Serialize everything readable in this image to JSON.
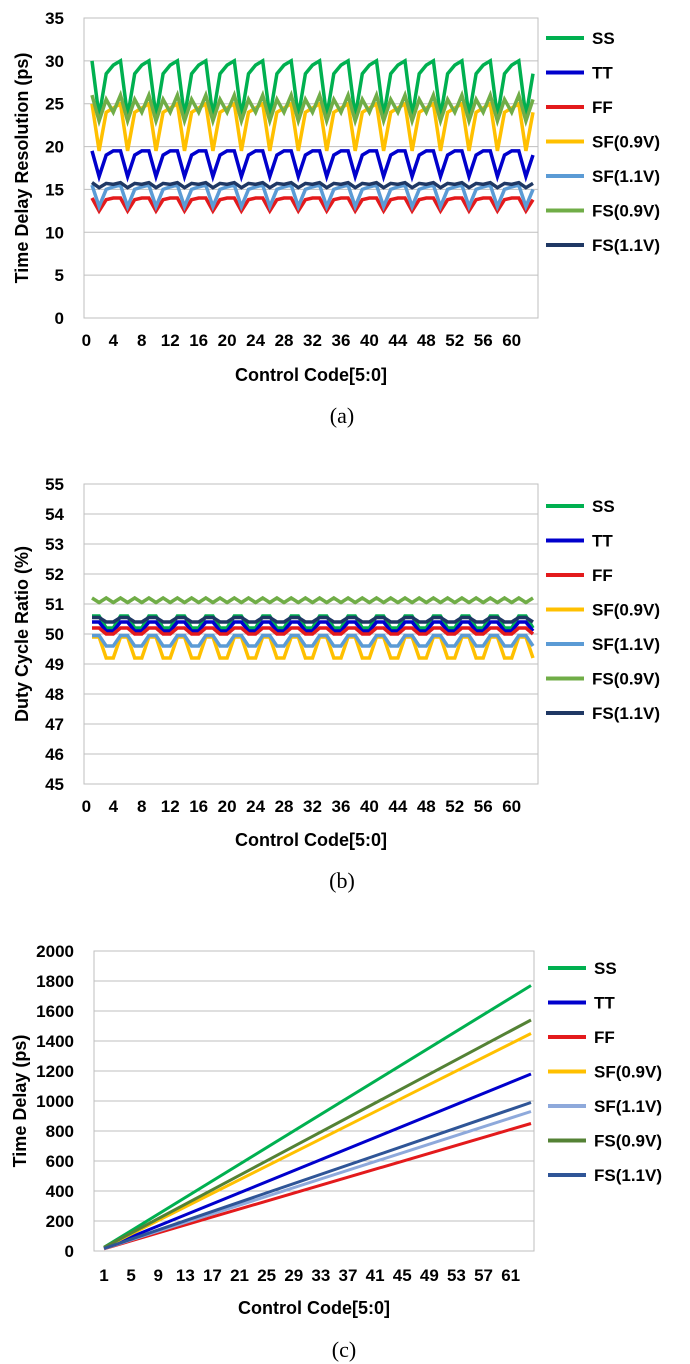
{
  "legend": [
    {
      "name": "SS",
      "color": "#00B050"
    },
    {
      "name": "TT",
      "color": "#0000CC"
    },
    {
      "name": "FF",
      "color": "#E31A1C"
    },
    {
      "name": "SF(0.9V)",
      "color": "#FFC000"
    },
    {
      "name": "SF(1.1V)",
      "color": "#5B9BD5"
    },
    {
      "name": "FS(0.9V)",
      "color": "#70AD47"
    },
    {
      "name": "FS(1.1V)",
      "color": "#1F3864"
    }
  ],
  "chart_data": [
    {
      "type": "line",
      "caption": "(a)",
      "ylabel": "Time Delay Resolution (ps)",
      "xlabel": "Control Code[5:0]",
      "ylim": [
        0,
        35
      ],
      "yticks": [
        "0",
        "5",
        "10",
        "15",
        "20",
        "25",
        "30",
        "35"
      ],
      "xticks": [
        "0",
        "4",
        "8",
        "12",
        "16",
        "20",
        "24",
        "28",
        "32",
        "36",
        "40",
        "44",
        "48",
        "52",
        "56",
        "60"
      ],
      "x_start": 1,
      "x_end": 63,
      "grid": "horizontal",
      "legend_position": "right",
      "series_colors": [
        "#00B050",
        "#0000CC",
        "#E31A1C",
        "#FFC000",
        "#5B9BD5",
        "#70AD47",
        "#1F3864"
      ],
      "series": [
        {
          "name": "SS",
          "pattern_period": 4,
          "pattern": [
            30,
            23.5,
            28.5,
            29.5
          ]
        },
        {
          "name": "TT",
          "pattern_period": 4,
          "pattern": [
            19.5,
            16.5,
            19,
            19.5
          ]
        },
        {
          "name": "FF",
          "pattern_period": 4,
          "pattern": [
            14,
            12.5,
            13.8,
            14
          ]
        },
        {
          "name": "SF(0.9V)",
          "pattern_period": 4,
          "pattern": [
            25,
            19.5,
            24,
            24.5
          ]
        },
        {
          "name": "SF(1.1V)",
          "pattern_period": 4,
          "pattern": [
            15.5,
            13,
            15,
            15.3
          ]
        },
        {
          "name": "FS(0.9V)",
          "pattern_period": 4,
          "pattern": [
            26,
            23,
            25.5,
            24
          ]
        },
        {
          "name": "FS(1.1V)",
          "pattern_period": 4,
          "pattern": [
            15.8,
            15.2,
            15.7,
            15.6
          ]
        }
      ]
    },
    {
      "type": "line",
      "caption": "(b)",
      "ylabel": "Duty Cycle Ratio (%)",
      "xlabel": "Control Code[5:0]",
      "ylim": [
        45,
        55
      ],
      "yticks": [
        "45",
        "46",
        "47",
        "48",
        "49",
        "50",
        "51",
        "52",
        "53",
        "54",
        "55"
      ],
      "xticks": [
        "0",
        "4",
        "8",
        "12",
        "16",
        "20",
        "24",
        "28",
        "32",
        "36",
        "40",
        "44",
        "48",
        "52",
        "56",
        "60"
      ],
      "x_start": 1,
      "x_end": 63,
      "grid": "horizontal",
      "legend_position": "right",
      "series_colors": [
        "#00B050",
        "#0000CC",
        "#E31A1C",
        "#FFC000",
        "#5B9BD5",
        "#70AD47",
        "#1F3864"
      ],
      "series": [
        {
          "name": "SS",
          "pattern_period": 4,
          "pattern": [
            50.6,
            50.6,
            50.2,
            50.2
          ]
        },
        {
          "name": "TT",
          "pattern_period": 4,
          "pattern": [
            50.4,
            50.4,
            50.1,
            50.1
          ]
        },
        {
          "name": "FF",
          "pattern_period": 4,
          "pattern": [
            50.2,
            50.2,
            50.0,
            50.0
          ]
        },
        {
          "name": "SF(0.9V)",
          "pattern_period": 4,
          "pattern": [
            49.9,
            49.9,
            49.2,
            49.2
          ]
        },
        {
          "name": "SF(1.1V)",
          "pattern_period": 4,
          "pattern": [
            49.95,
            49.95,
            49.6,
            49.6
          ]
        },
        {
          "name": "FS(0.9V)",
          "pattern_period": 4,
          "pattern": [
            51.2,
            51.05,
            51.2,
            51.05
          ]
        },
        {
          "name": "FS(1.1V)",
          "pattern_period": 4,
          "pattern": [
            50.55,
            50.55,
            50.4,
            50.4
          ]
        }
      ]
    },
    {
      "type": "line",
      "caption": "(c)",
      "ylabel": "Time Delay (ps)",
      "xlabel": "Control Code[5:0]",
      "ylim": [
        0,
        2000
      ],
      "yticks": [
        "0",
        "200",
        "400",
        "600",
        "800",
        "1000",
        "1200",
        "1400",
        "1600",
        "1800",
        "2000"
      ],
      "xticks": [
        "1",
        "5",
        "9",
        "13",
        "17",
        "21",
        "25",
        "29",
        "33",
        "37",
        "41",
        "45",
        "49",
        "53",
        "57",
        "61"
      ],
      "x_start": 1,
      "x_end": 64,
      "grid": "horizontal",
      "legend_position": "right",
      "series_colors": [
        "#00B050",
        "#0000CC",
        "#E31A1C",
        "#FFC000",
        "#8EA9DB",
        "#548235",
        "#2F5597"
      ],
      "series": [
        {
          "name": "SS",
          "start": 25,
          "end": 1770
        },
        {
          "name": "TT",
          "start": 20,
          "end": 1180
        },
        {
          "name": "FF",
          "start": 15,
          "end": 850
        },
        {
          "name": "SF(0.9V)",
          "start": 22,
          "end": 1450
        },
        {
          "name": "SF(1.1V)",
          "start": 16,
          "end": 930
        },
        {
          "name": "FS(0.9V)",
          "start": 23,
          "end": 1540
        },
        {
          "name": "FS(1.1V)",
          "start": 17,
          "end": 990
        }
      ]
    }
  ]
}
